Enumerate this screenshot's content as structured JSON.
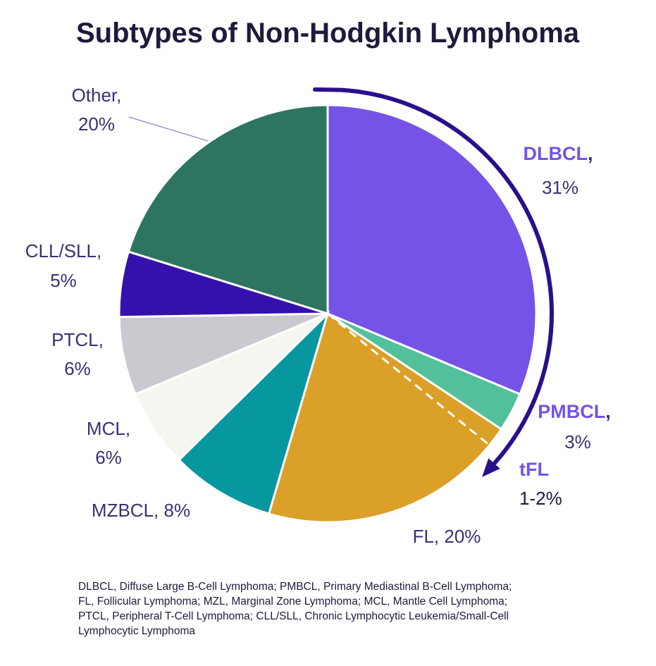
{
  "chart_data": {
    "type": "pie",
    "title": "Subtypes of Non-Hodgkin Lymphoma",
    "slices": [
      {
        "name": "DLBCL",
        "value": 31,
        "percent_label": "31%",
        "color": "#7553e6"
      },
      {
        "name": "PMBCL",
        "value": 3,
        "percent_label": "3%",
        "color": "#52c09b"
      },
      {
        "name": "FL",
        "value": 20,
        "percent_label": "FL, 20%",
        "color": "#dba027"
      },
      {
        "name": "MZBCL",
        "value": 8,
        "percent_label": "MZBCL, 8%",
        "color": "#07979f"
      },
      {
        "name": "MCL",
        "value": 6,
        "percent_label": "6%",
        "color": "#f6f6f1"
      },
      {
        "name": "PTCL",
        "value": 6,
        "percent_label": "6%",
        "color": "#cbc9cf"
      },
      {
        "name": "CLL/SLL",
        "value": 5,
        "percent_label": "5%",
        "color": "#3411ad"
      },
      {
        "name": "Other",
        "value": 20,
        "percent_label": "20%",
        "color": "#2d7561"
      }
    ],
    "annotation": {
      "name": "tFL",
      "value_label": "1-2%"
    },
    "footnote_lines": [
      "DLBCL, Diffuse Large B-Cell Lymphoma; PMBCL, Primary Mediastinal B-Cell Lymphoma;",
      "FL, Follicular Lymphoma; MZL, Marginal Zone Lymphoma; MCL, Mantle Cell Lymphoma;",
      "PTCL, Peripheral T-Cell Lymphoma; CLL/SLL, Chronic Lymphocytic Leukemia/Small-Cell",
      "Lymphocytic Lymphoma"
    ]
  },
  "colors": {
    "title": "#1e1a3c",
    "label": "#3a2f74",
    "highlight": "#7553e6",
    "arrow": "#2a0f8c"
  }
}
